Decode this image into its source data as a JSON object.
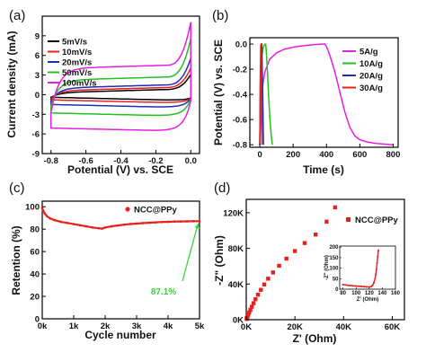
{
  "chart_data": [
    {
      "panel": "(a)",
      "type": "line",
      "title": "",
      "xlabel": "Potential (V) vs. SCE",
      "ylabel": "Current density (mA)",
      "xlim": [
        -0.85,
        0.05
      ],
      "ylim": [
        -9,
        12
      ],
      "xticks": [
        -0.8,
        -0.6,
        -0.4,
        -0.2,
        0.0
      ],
      "yticks": [
        -9,
        -6,
        -3,
        0,
        3,
        6,
        9
      ],
      "xtick_labels": [
        "-0.8",
        "-0.6",
        "-0.4",
        "-0.2",
        "0.0"
      ],
      "ytick_labels": [
        "-9",
        "-6",
        "-3",
        "0",
        "3",
        "6",
        "9"
      ],
      "legend_position": "top-left",
      "series": [
        {
          "name": "5mV/s",
          "color": "#000000",
          "v_min": -0.8,
          "v_max": 0.0,
          "i_top_plateau": 0.3,
          "i_bottom_plateau": -0.9,
          "i_end_peak": 2.5
        },
        {
          "name": "10mV/s",
          "color": "#e8201e",
          "v_min": -0.8,
          "v_max": 0.0,
          "i_top_plateau": 0.6,
          "i_bottom_plateau": -1.3,
          "i_end_peak": 3.5
        },
        {
          "name": "20mV/s",
          "color": "#1f2fb5",
          "v_min": -0.8,
          "v_max": 0.0,
          "i_top_plateau": 1.0,
          "i_bottom_plateau": -2.0,
          "i_end_peak": 5.0
        },
        {
          "name": "50mV/s",
          "color": "#23c020",
          "v_min": -0.8,
          "v_max": 0.0,
          "i_top_plateau": 2.2,
          "i_bottom_plateau": -3.3,
          "i_end_peak": 8.0
        },
        {
          "name": "100mV/s",
          "color": "#e81fe0",
          "v_min": -0.8,
          "v_max": 0.0,
          "i_top_plateau": 4.0,
          "i_bottom_plateau": -5.6,
          "i_end_peak": 10.5
        }
      ]
    },
    {
      "panel": "(b)",
      "type": "line",
      "title": "",
      "xlabel": "Time (s)",
      "ylabel": "Potential (V) vs. SCE",
      "xlim": [
        -60,
        830
      ],
      "ylim": [
        -0.82,
        0.05
      ],
      "xticks": [
        0,
        200,
        400,
        600,
        800
      ],
      "yticks": [
        0.0,
        -0.2,
        -0.4,
        -0.6,
        -0.8
      ],
      "xtick_labels": [
        "0",
        "200",
        "400",
        "600",
        "800"
      ],
      "ytick_labels": [
        "0.0",
        "-0.2",
        "-0.4",
        "-0.6",
        "-0.8"
      ],
      "legend_position": "top-right",
      "series": [
        {
          "name": "5A/g",
          "color": "#e81fe0",
          "x": [
            0,
            5,
            15,
            30,
            60,
            100,
            150,
            200,
            250,
            300,
            350,
            390,
            400,
            420,
            450,
            480,
            510,
            540,
            570,
            600,
            650,
            700,
            750,
            800
          ],
          "y": [
            -0.8,
            -0.55,
            -0.35,
            -0.22,
            -0.12,
            -0.07,
            -0.04,
            -0.025,
            -0.015,
            -0.008,
            -0.003,
            0.0,
            -0.02,
            -0.09,
            -0.22,
            -0.38,
            -0.54,
            -0.66,
            -0.73,
            -0.76,
            -0.78,
            -0.79,
            -0.795,
            -0.8
          ]
        },
        {
          "name": "10A/g",
          "color": "#23c020",
          "x": [
            0,
            2,
            6,
            12,
            20,
            28,
            35,
            38,
            45,
            52,
            60,
            68,
            75
          ],
          "y": [
            -0.8,
            -0.5,
            -0.25,
            -0.1,
            -0.03,
            -0.005,
            0.0,
            -0.05,
            -0.2,
            -0.4,
            -0.58,
            -0.72,
            -0.8
          ]
        },
        {
          "name": "20A/g",
          "color": "#1f2fb5",
          "x": [
            0,
            3,
            8,
            12,
            17,
            22
          ],
          "y": [
            -0.8,
            -0.3,
            -0.02,
            0.0,
            -0.4,
            -0.8
          ]
        },
        {
          "name": "30A/g",
          "color": "#e8201e",
          "x": [
            0,
            2,
            5,
            7,
            10,
            13
          ],
          "y": [
            -0.8,
            -0.3,
            -0.02,
            0.0,
            -0.4,
            -0.8
          ]
        }
      ]
    },
    {
      "panel": "(c)",
      "type": "scatter",
      "title": "",
      "xlabel": "Cycle number",
      "ylabel": "Retention (%)",
      "xlim": [
        0,
        5000
      ],
      "ylim": [
        0,
        105
      ],
      "xticks": [
        0,
        1000,
        2000,
        3000,
        4000,
        5000
      ],
      "yticks": [
        0,
        20,
        40,
        60,
        80,
        100
      ],
      "xtick_labels": [
        "0k",
        "1k",
        "2k",
        "3k",
        "4k",
        "5k"
      ],
      "ytick_labels": [
        "0",
        "20",
        "40",
        "60",
        "80",
        "100"
      ],
      "legend_position": "top-right",
      "annotation": "87.1%",
      "annotation_point": [
        5000,
        87.1
      ],
      "series": [
        {
          "name": "NCC@PPy",
          "color": "#e8201e",
          "x": [
            0,
            30,
            80,
            150,
            250,
            400,
            600,
            800,
            1000,
            1200,
            1400,
            1600,
            1800,
            1900,
            2000,
            2200,
            2400,
            2600,
            2800,
            3000,
            3200,
            3400,
            3600,
            3800,
            4000,
            4200,
            4400,
            4600,
            4800,
            5000
          ],
          "y": [
            99.0,
            96.5,
            94.0,
            91.5,
            89.5,
            88.0,
            86.5,
            85.5,
            84.5,
            83.5,
            82.5,
            81.5,
            80.8,
            80.5,
            81.5,
            82.5,
            83.3,
            84.0,
            84.6,
            85.0,
            85.4,
            85.8,
            86.1,
            86.4,
            86.6,
            86.8,
            86.9,
            87.0,
            87.1,
            87.1
          ]
        }
      ]
    },
    {
      "panel": "(d)",
      "type": "scatter",
      "title": "",
      "xlabel": "Z' (Ohm)",
      "ylabel": "-Z\" (Ohm)",
      "xlim": [
        0,
        65000
      ],
      "ylim": [
        0,
        135000
      ],
      "xticks": [
        0,
        20000,
        40000,
        60000
      ],
      "yticks": [
        0,
        40000,
        80000,
        120000
      ],
      "xtick_labels": [
        "0K",
        "20K",
        "40K",
        "60K"
      ],
      "ytick_labels": [
        "0K",
        "40K",
        "80K",
        "120K"
      ],
      "legend_position": "top-right",
      "series": [
        {
          "name": "NCC@PPy",
          "color": "#e8201e",
          "x": [
            150,
            300,
            500,
            800,
            1200,
            1700,
            2300,
            3000,
            3800,
            4800,
            6000,
            7400,
            9000,
            11000,
            13500,
            16500,
            20000,
            24000,
            28500,
            33000,
            36500
          ],
          "y": [
            800,
            2000,
            3500,
            5500,
            8000,
            11000,
            14500,
            18500,
            23000,
            28000,
            33500,
            39500,
            46000,
            53000,
            60500,
            68500,
            77000,
            86000,
            95500,
            110000,
            126000
          ]
        }
      ],
      "inset": {
        "xlabel": "Z' (Ohm)",
        "ylabel": "-Z\" (Ohm)",
        "xlim": [
          75,
          160
        ],
        "ylim": [
          0,
          205
        ],
        "xticks": [
          80,
          100,
          120,
          140,
          160
        ],
        "yticks": [
          0,
          50,
          100,
          150,
          200
        ],
        "xtick_labels": [
          "80",
          "100",
          "120",
          "140",
          "160"
        ],
        "ytick_labels": [
          "0",
          "50",
          "100",
          "150",
          "200"
        ],
        "x": [
          80,
          84,
          88,
          92,
          96,
          100,
          104,
          108,
          112,
          116,
          120,
          123,
          125,
          127,
          129,
          130,
          131,
          132,
          133,
          134
        ],
        "y": [
          22,
          20,
          18,
          17,
          16,
          15,
          14,
          13,
          12,
          11,
          10,
          12,
          18,
          30,
          50,
          70,
          95,
          125,
          155,
          185
        ]
      }
    }
  ]
}
